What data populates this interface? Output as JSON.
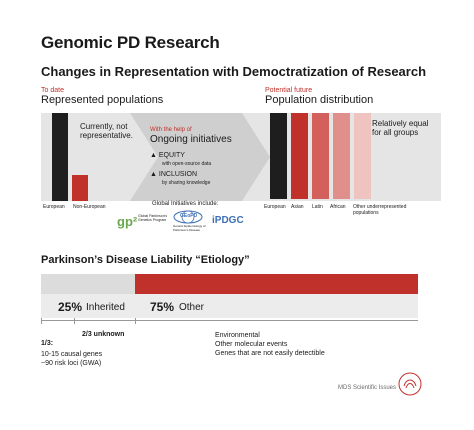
{
  "title": "Genomic PD Research",
  "subtitle": "Changes in Representation with Democtratization of Research",
  "left": {
    "tag": "To date",
    "heading": "Represented populations",
    "note": "Currently, not representative.",
    "bars": [
      {
        "label": "European",
        "value": 1.0,
        "color": "#1e1e1e"
      },
      {
        "label": "Non-European",
        "value": 0.3,
        "color": "#c0312b"
      }
    ]
  },
  "middle": {
    "tag": "With the help of",
    "heading": "Ongoing initiatives",
    "item1_title": "EQUITY",
    "item1_sub": "with open-source data",
    "item2_title": "INCLUSION",
    "item2_sub": "by sharing knowledge",
    "global_label": "Global Initiatives include:",
    "logos": {
      "gp2_mark": "gp²",
      "gp2_text": "Global Parkinson's Genetics Program",
      "geopd_mark": "GEoPD",
      "geopd_text": "Genetic Epidemiology of Parkinson's Disease",
      "ipdgc_mark": "iPDGC"
    }
  },
  "right": {
    "tag": "Potential future",
    "heading": "Population distribution",
    "note": "Relatively equal for all groups",
    "bars": [
      {
        "label": "European",
        "value": 1.0,
        "color": "#1e1e1e"
      },
      {
        "label": "Asian",
        "value": 1.0,
        "color": "#c0312b"
      },
      {
        "label": "Latin",
        "value": 1.0,
        "color": "#d3605a"
      },
      {
        "label": "African",
        "value": 1.0,
        "color": "#e08f8a"
      },
      {
        "label": "Other underrepresented populations",
        "value": 1.0,
        "color": "#eec3c0"
      }
    ]
  },
  "liability": {
    "heading": "Parkinson’s Disease Liability “Etiology”",
    "inherited_pct": "25%",
    "inherited_label": "Inherited",
    "other_pct": "75%",
    "other_label": "Other",
    "inherited_fraction": 0.25,
    "known_label": "1/3:",
    "unknown_label": "2/3 unknown",
    "known_line1": "10-15 causal genes",
    "known_line2": "~90 risk loci (GWA)",
    "other_line1": "Environmental",
    "other_line2": "Other molecular events",
    "other_line3": "Genes that are not easily detectible",
    "colors": {
      "light": "#dcdcdc",
      "mid": "#bdbdbd",
      "red": "#c0312b"
    }
  },
  "footer": {
    "label": "MDS Scientific Issues"
  }
}
